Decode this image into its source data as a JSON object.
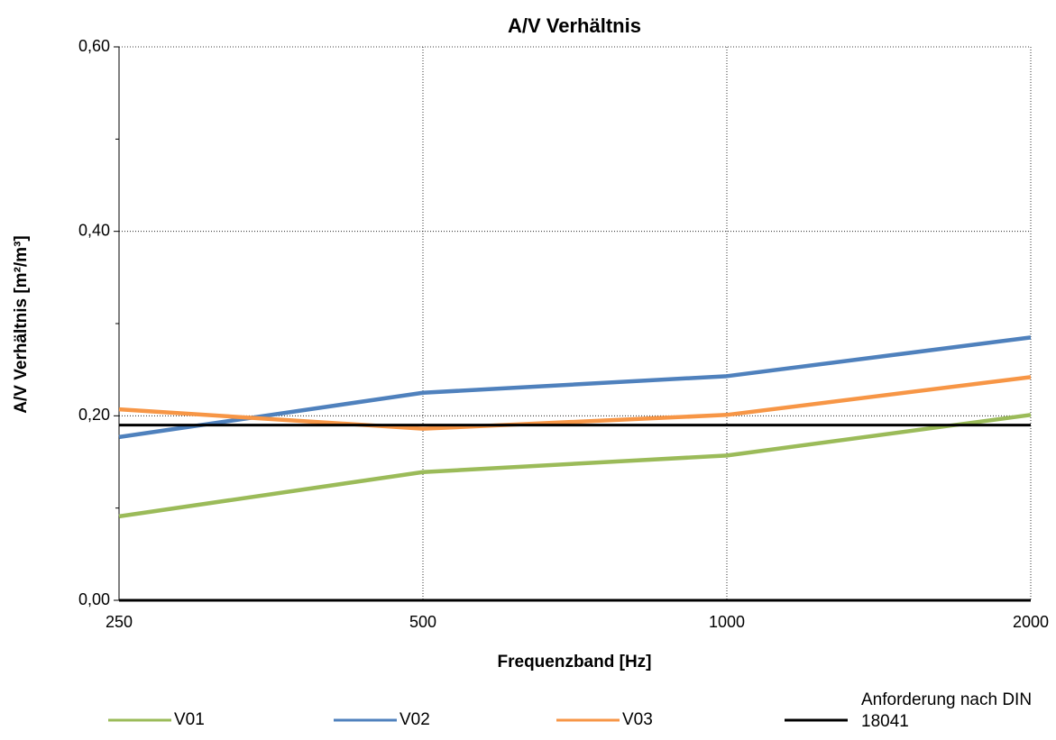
{
  "chart_data": {
    "type": "line",
    "title": "A/V Verhältnis",
    "x_label": "Frequenzband [Hz]",
    "y_label": "A/V Verhältnis [m²/m³]",
    "categories": [
      "250",
      "500",
      "1000",
      "2000"
    ],
    "series": [
      {
        "name": "V01",
        "color": "#9bbb59",
        "values": [
          0.091,
          0.139,
          0.157,
          0.201
        ]
      },
      {
        "name": "V02",
        "color": "#4f81bd",
        "values": [
          0.177,
          0.225,
          0.243,
          0.285
        ]
      },
      {
        "name": "V03",
        "color": "#f79646",
        "values": [
          0.207,
          0.186,
          0.201,
          0.242
        ]
      },
      {
        "name": "Anforderung nach DIN 18041",
        "color": "#000000",
        "values": [
          0.19,
          0.19,
          0.19,
          0.19
        ]
      }
    ],
    "ylim": [
      0,
      0.6
    ],
    "yticks": [
      {
        "value": 0,
        "label": "0,00"
      },
      {
        "value": 0.2,
        "label": "0,20"
      },
      {
        "value": 0.4,
        "label": "0,40"
      },
      {
        "value": 0.6,
        "label": "0,60"
      }
    ],
    "yminorticks": [
      0.1,
      0.3,
      0.5
    ],
    "grid": true,
    "legend": "bottom"
  }
}
